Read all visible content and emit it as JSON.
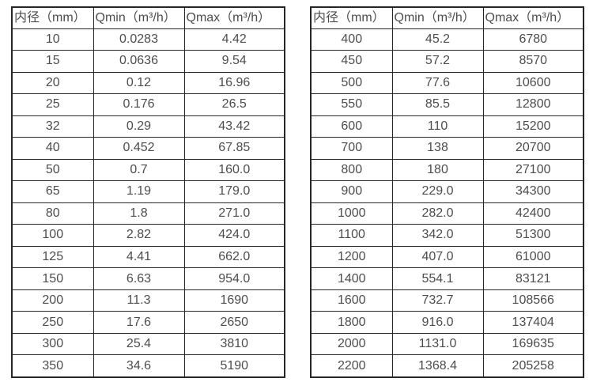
{
  "colors": {
    "background": "#ffffff",
    "border": "#262626",
    "text": "#4d4d4d"
  },
  "tables": [
    {
      "name": "flow-rate-table-small-diameters",
      "headers": [
        "内径（mm）",
        "Qmin（m³/h）",
        "Qmax（m³/h）"
      ],
      "rows": [
        [
          "10",
          "0.0283",
          "4.42"
        ],
        [
          "15",
          "0.0636",
          "9.54"
        ],
        [
          "20",
          "0.12",
          "16.96"
        ],
        [
          "25",
          "0.176",
          "26.5"
        ],
        [
          "32",
          "0.29",
          "43.42"
        ],
        [
          "40",
          "0.452",
          "67.85"
        ],
        [
          "50",
          "0.7",
          "160.0"
        ],
        [
          "65",
          "1.19",
          "179.0"
        ],
        [
          "80",
          "1.8",
          "271.0"
        ],
        [
          "100",
          "2.82",
          "424.0"
        ],
        [
          "125",
          "4.41",
          "662.0"
        ],
        [
          "150",
          "6.63",
          "954.0"
        ],
        [
          "200",
          "11.3",
          "1690"
        ],
        [
          "250",
          "17.6",
          "2650"
        ],
        [
          "300",
          "25.4",
          "3810"
        ],
        [
          "350",
          "34.6",
          "5190"
        ]
      ]
    },
    {
      "name": "flow-rate-table-large-diameters",
      "headers": [
        "内径（mm）",
        "Qmin（m³/h）",
        "Qmax（m³/h）"
      ],
      "rows": [
        [
          "400",
          "45.2",
          "6780"
        ],
        [
          "450",
          "57.2",
          "8570"
        ],
        [
          "500",
          "77.6",
          "10600"
        ],
        [
          "550",
          "85.5",
          "12800"
        ],
        [
          "600",
          "110",
          "15200"
        ],
        [
          "700",
          "138",
          "20700"
        ],
        [
          "800",
          "180",
          "27100"
        ],
        [
          "900",
          "229.0",
          "34300"
        ],
        [
          "1000",
          "282.0",
          "42400"
        ],
        [
          "1100",
          "342.0",
          "51300"
        ],
        [
          "1200",
          "407.0",
          "61000"
        ],
        [
          "1400",
          "554.1",
          "83121"
        ],
        [
          "1600",
          "732.7",
          "108566"
        ],
        [
          "1800",
          "916.0",
          "137404"
        ],
        [
          "2000",
          "1131.0",
          "169635"
        ],
        [
          "2200",
          "1368.4",
          "205258"
        ]
      ]
    }
  ]
}
